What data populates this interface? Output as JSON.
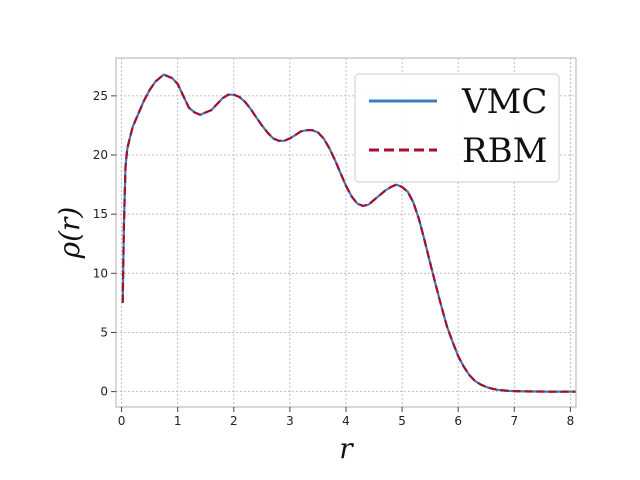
{
  "chart_data": {
    "type": "line",
    "title": "",
    "xlabel": "r",
    "ylabel": "ρ(r)",
    "xlim": [
      -0.1,
      8.1
    ],
    "ylim": [
      -1.3,
      28.2
    ],
    "xticks": [
      0,
      1,
      2,
      3,
      4,
      5,
      6,
      7,
      8
    ],
    "yticks": [
      0,
      5,
      10,
      15,
      20,
      25
    ],
    "grid": true,
    "legend_position": "top-right",
    "series": [
      {
        "name": "VMC",
        "color": "#3a7dbf",
        "style": "solid",
        "x": [
          0.02,
          0.04,
          0.07,
          0.1,
          0.15,
          0.2,
          0.3,
          0.4,
          0.5,
          0.6,
          0.7,
          0.75,
          0.8,
          0.9,
          1.0,
          1.1,
          1.2,
          1.3,
          1.4,
          1.5,
          1.6,
          1.7,
          1.8,
          1.9,
          2.0,
          2.1,
          2.2,
          2.3,
          2.4,
          2.5,
          2.6,
          2.7,
          2.8,
          2.9,
          3.0,
          3.1,
          3.2,
          3.3,
          3.4,
          3.5,
          3.6,
          3.7,
          3.8,
          3.9,
          4.0,
          4.1,
          4.2,
          4.3,
          4.4,
          4.5,
          4.6,
          4.7,
          4.8,
          4.9,
          5.0,
          5.1,
          5.2,
          5.3,
          5.4,
          5.5,
          5.6,
          5.7,
          5.8,
          5.9,
          6.0,
          6.1,
          6.2,
          6.3,
          6.4,
          6.5,
          6.6,
          6.7,
          6.8,
          6.9,
          7.0,
          7.2,
          7.4,
          7.6,
          7.8,
          8.0,
          8.1
        ],
        "y": [
          7.5,
          14.0,
          19.0,
          20.5,
          21.5,
          22.4,
          23.5,
          24.6,
          25.5,
          26.2,
          26.6,
          26.8,
          26.7,
          26.5,
          26.0,
          25.0,
          24.0,
          23.6,
          23.4,
          23.6,
          23.8,
          24.3,
          24.8,
          25.1,
          25.1,
          24.9,
          24.5,
          23.9,
          23.2,
          22.5,
          21.9,
          21.4,
          21.2,
          21.2,
          21.4,
          21.7,
          22.0,
          22.1,
          22.1,
          21.9,
          21.4,
          20.6,
          19.6,
          18.5,
          17.4,
          16.5,
          15.9,
          15.7,
          15.8,
          16.2,
          16.6,
          17.0,
          17.3,
          17.5,
          17.3,
          16.9,
          16.0,
          14.6,
          12.8,
          10.9,
          9.0,
          7.2,
          5.5,
          4.2,
          3.0,
          2.1,
          1.4,
          0.9,
          0.6,
          0.4,
          0.25,
          0.15,
          0.1,
          0.06,
          0.04,
          0.02,
          0.01,
          0.0,
          0.0,
          0.0,
          0.0
        ]
      },
      {
        "name": "RBM",
        "color": "#a50f2d",
        "style": "dashed",
        "x": [
          0.02,
          0.04,
          0.07,
          0.1,
          0.15,
          0.2,
          0.3,
          0.4,
          0.5,
          0.6,
          0.7,
          0.75,
          0.8,
          0.9,
          1.0,
          1.1,
          1.2,
          1.3,
          1.4,
          1.5,
          1.6,
          1.7,
          1.8,
          1.9,
          2.0,
          2.1,
          2.2,
          2.3,
          2.4,
          2.5,
          2.6,
          2.7,
          2.8,
          2.9,
          3.0,
          3.1,
          3.2,
          3.3,
          3.4,
          3.5,
          3.6,
          3.7,
          3.8,
          3.9,
          4.0,
          4.1,
          4.2,
          4.3,
          4.4,
          4.5,
          4.6,
          4.7,
          4.8,
          4.9,
          5.0,
          5.1,
          5.2,
          5.3,
          5.4,
          5.5,
          5.6,
          5.7,
          5.8,
          5.9,
          6.0,
          6.1,
          6.2,
          6.3,
          6.4,
          6.5,
          6.6,
          6.7,
          6.8,
          6.9,
          7.0,
          7.2,
          7.4,
          7.6,
          7.8,
          8.0,
          8.1
        ],
        "y": [
          7.5,
          14.0,
          19.0,
          20.5,
          21.5,
          22.4,
          23.5,
          24.6,
          25.5,
          26.2,
          26.6,
          26.8,
          26.7,
          26.5,
          26.0,
          25.0,
          24.0,
          23.6,
          23.4,
          23.6,
          23.8,
          24.3,
          24.8,
          25.1,
          25.1,
          24.9,
          24.5,
          23.9,
          23.2,
          22.5,
          21.9,
          21.4,
          21.2,
          21.2,
          21.4,
          21.7,
          22.0,
          22.1,
          22.1,
          21.9,
          21.4,
          20.6,
          19.6,
          18.5,
          17.4,
          16.5,
          15.9,
          15.7,
          15.8,
          16.2,
          16.6,
          17.0,
          17.3,
          17.5,
          17.3,
          16.9,
          16.0,
          14.6,
          12.8,
          10.9,
          9.0,
          7.2,
          5.5,
          4.2,
          3.0,
          2.1,
          1.4,
          0.9,
          0.6,
          0.4,
          0.25,
          0.15,
          0.1,
          0.06,
          0.04,
          0.02,
          0.01,
          0.0,
          0.0,
          0.0,
          0.0
        ]
      }
    ]
  }
}
